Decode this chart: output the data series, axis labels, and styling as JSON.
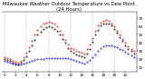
{
  "title": "Milwaukee Weather Outdoor Temperature vs Dew Point (24 Hours)",
  "title_fontsize": 3.8,
  "background_color": "#ffffff",
  "grid_color": "#888888",
  "ylim": [
    5,
    78
  ],
  "yticks": [
    10,
    20,
    30,
    40,
    50,
    60,
    70
  ],
  "ytick_labels": [
    "10",
    "20",
    "30",
    "40",
    "50",
    "60",
    "70"
  ],
  "temp_color": "#ff0000",
  "dew_color": "#0000ff",
  "heat_color": "#000000",
  "marker_size": 0.8,
  "xlabel_fontsize": 3.0,
  "ylabel_fontsize": 3.0,
  "temp_data": [
    22,
    21,
    20,
    18,
    17,
    16,
    18,
    22,
    28,
    35,
    42,
    50,
    56,
    60,
    63,
    65,
    66,
    65,
    63,
    60,
    55,
    50,
    44,
    38,
    34,
    32,
    30,
    29,
    28,
    27,
    32,
    38,
    46,
    55,
    61,
    65,
    67,
    68,
    67,
    64,
    60,
    55,
    50,
    45,
    40,
    36,
    33,
    30
  ],
  "dew_data": [
    18,
    17,
    16,
    15,
    14,
    14,
    14,
    15,
    16,
    17,
    18,
    19,
    20,
    20,
    20,
    21,
    21,
    21,
    21,
    21,
    21,
    21,
    21,
    21,
    20,
    19,
    18,
    17,
    16,
    15,
    17,
    19,
    22,
    26,
    30,
    34,
    36,
    37,
    37,
    37,
    36,
    35,
    33,
    31,
    29,
    27,
    25,
    23
  ],
  "heat_data": [
    20,
    19,
    18,
    16,
    15,
    14,
    16,
    19,
    24,
    30,
    37,
    44,
    50,
    54,
    57,
    59,
    60,
    59,
    57,
    55,
    50,
    45,
    40,
    34,
    30,
    28,
    26,
    25,
    24,
    23,
    27,
    33,
    41,
    50,
    56,
    61,
    63,
    64,
    63,
    61,
    57,
    52,
    47,
    42,
    37,
    33,
    30,
    27
  ],
  "vgrid_x": [
    0,
    8,
    16,
    24,
    32,
    40,
    48
  ],
  "num_points": 48,
  "xtick_positions": [
    0,
    4,
    8,
    12,
    16,
    20,
    24,
    28,
    32,
    36,
    40,
    44
  ],
  "xtick_labels": [
    "0",
    "2",
    "4",
    "6",
    "8",
    "10",
    "12",
    "14",
    "16",
    "18",
    "20",
    "22"
  ]
}
